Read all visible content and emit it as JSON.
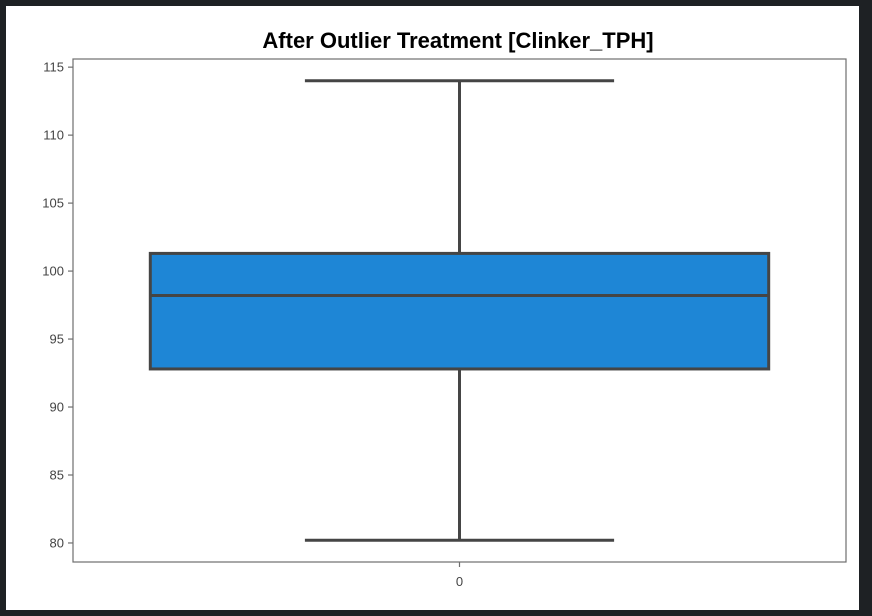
{
  "chart_data": {
    "type": "box",
    "title": "After Outlier Treatment [Clinker_TPH]",
    "xlabel": "",
    "ylabel": "",
    "categories": [
      "0"
    ],
    "ylim": [
      78.6,
      115.6
    ],
    "yticks": [
      "80",
      "85",
      "90",
      "95",
      "100",
      "105",
      "110",
      "115"
    ],
    "ytick_values": [
      80,
      85,
      90,
      95,
      100,
      105,
      110,
      115
    ],
    "boxes": [
      {
        "category": "0",
        "whisker_low": 80.2,
        "q1": 92.8,
        "median": 98.2,
        "q3": 101.3,
        "whisker_high": 114.0
      }
    ],
    "box_color": "#1e86d6",
    "line_color": "#454545",
    "grid": false,
    "legend": "none"
  }
}
